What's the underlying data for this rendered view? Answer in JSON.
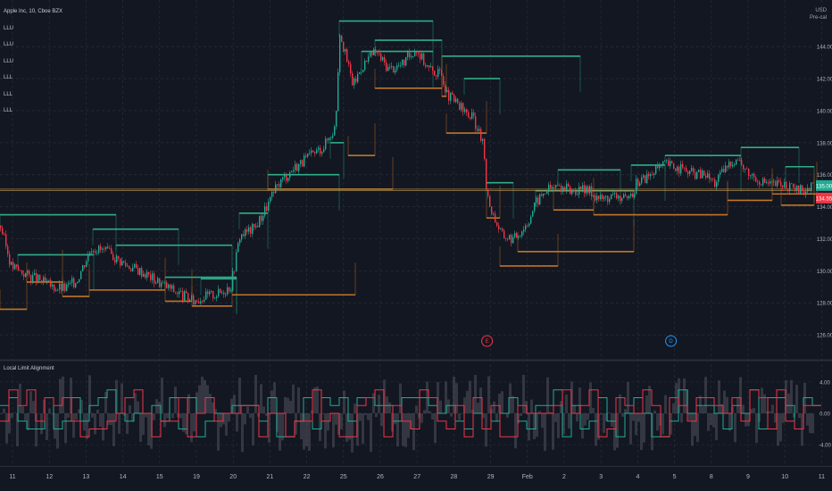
{
  "header": {
    "symbol_title": "Apple Inc, 10, Cboe BZX",
    "legend_lines": [
      "LLU",
      "LLU",
      "LLU",
      "LLL",
      "LLL",
      "LLL"
    ],
    "currency": "USD",
    "currency_sub": "Pre-cal"
  },
  "indicator": {
    "title": "Local Limit Alignment"
  },
  "chart_data": [
    {
      "type": "candlestick",
      "title": "Apple Inc, 10, Cboe BZX",
      "x_ticks": [
        "11",
        "12",
        "13",
        "14",
        "15",
        "19",
        "20",
        "21",
        "22",
        "25",
        "26",
        "27",
        "28",
        "29",
        "Feb",
        "2",
        "3",
        "4",
        "5",
        "8",
        "9",
        "10",
        "11"
      ],
      "y_ticks": [
        126,
        128,
        130,
        132,
        134,
        136,
        138,
        140,
        142,
        144
      ],
      "y_tick_labels": [
        "126.00",
        "128.00",
        "130.00",
        "132.00",
        "134.00",
        "136.00",
        "138.00",
        "140.00",
        "142.00",
        "144.00"
      ],
      "ylim": [
        124.5,
        146.8
      ],
      "last_price_label": "135.00",
      "last_price_color": "#22ab94",
      "sub_price_label": "134.55",
      "sub_price_color": "#f23645",
      "close_path": [
        [
          0,
          132.8
        ],
        [
          12,
          130.3
        ],
        [
          28,
          129.8
        ],
        [
          40,
          129.5
        ],
        [
          58,
          129.0
        ],
        [
          72,
          128.9
        ],
        [
          85,
          129.4
        ],
        [
          102,
          131.5
        ],
        [
          118,
          131.2
        ],
        [
          140,
          130.4
        ],
        [
          160,
          129.9
        ],
        [
          180,
          129.2
        ],
        [
          200,
          128.6
        ],
        [
          215,
          128.1
        ],
        [
          228,
          128.4
        ],
        [
          245,
          128.6
        ],
        [
          258,
          129.1
        ],
        [
          268,
          132.2
        ],
        [
          285,
          132.7
        ],
        [
          300,
          134.2
        ],
        [
          312,
          135.5
        ],
        [
          330,
          136.5
        ],
        [
          348,
          137.2
        ],
        [
          362,
          137.8
        ],
        [
          375,
          139.0
        ],
        [
          380,
          145.0
        ],
        [
          386,
          143.5
        ],
        [
          395,
          141.6
        ],
        [
          405,
          142.8
        ],
        [
          420,
          143.7
        ],
        [
          435,
          142.6
        ],
        [
          450,
          142.9
        ],
        [
          465,
          143.9
        ],
        [
          480,
          142.6
        ],
        [
          495,
          142.2
        ],
        [
          500,
          141.0
        ],
        [
          508,
          140.6
        ],
        [
          520,
          139.9
        ],
        [
          530,
          139.5
        ],
        [
          540,
          138.0
        ],
        [
          545,
          134.6
        ],
        [
          552,
          133.5
        ],
        [
          562,
          132.2
        ],
        [
          575,
          132.0
        ],
        [
          590,
          133.0
        ],
        [
          600,
          134.3
        ],
        [
          612,
          135.1
        ],
        [
          625,
          135.3
        ],
        [
          640,
          135.0
        ],
        [
          660,
          135.0
        ],
        [
          672,
          134.5
        ],
        [
          690,
          134.7
        ],
        [
          705,
          134.3
        ],
        [
          712,
          135.5
        ],
        [
          725,
          135.9
        ],
        [
          745,
          136.7
        ],
        [
          760,
          136.4
        ],
        [
          775,
          136.1
        ],
        [
          790,
          136.0
        ],
        [
          800,
          135.5
        ],
        [
          815,
          136.6
        ],
        [
          825,
          137.1
        ],
        [
          835,
          136.2
        ],
        [
          850,
          135.7
        ],
        [
          862,
          135.4
        ],
        [
          878,
          135.4
        ],
        [
          890,
          135.0
        ],
        [
          905,
          135.1
        ],
        [
          910,
          135.3
        ]
      ],
      "upper_limit_segments": [
        [
          0,
          133.5,
          130
        ],
        [
          20,
          131.0,
          105
        ],
        [
          104,
          132.6,
          200
        ],
        [
          130,
          131.6,
          260
        ],
        [
          185,
          129.6,
          265
        ],
        [
          225,
          129.5,
          265
        ],
        [
          268,
          133.6,
          300
        ],
        [
          300,
          136.0,
          380
        ],
        [
          370,
          138.0,
          385
        ],
        [
          380,
          145.6,
          485
        ],
        [
          405,
          143.7,
          485
        ],
        [
          420,
          144.4,
          495
        ],
        [
          495,
          143.4,
          650
        ],
        [
          520,
          142.0,
          560
        ],
        [
          545,
          135.5,
          575
        ],
        [
          600,
          135.0,
          710
        ],
        [
          625,
          136.3,
          695
        ],
        [
          707,
          136.6,
          745
        ],
        [
          745,
          137.2,
          830
        ],
        [
          830,
          137.7,
          895
        ],
        [
          880,
          136.5,
          912
        ]
      ],
      "lower_limit_segments": [
        [
          0,
          127.6,
          30
        ],
        [
          30,
          129.3,
          70
        ],
        [
          70,
          128.4,
          100
        ],
        [
          100,
          128.8,
          185
        ],
        [
          185,
          128.1,
          215
        ],
        [
          215,
          127.8,
          260
        ],
        [
          260,
          128.5,
          398
        ],
        [
          300,
          135.1,
          440
        ],
        [
          390,
          137.2,
          420
        ],
        [
          420,
          141.4,
          495
        ],
        [
          495,
          140.9,
          500
        ],
        [
          500,
          138.6,
          545
        ],
        [
          545,
          133.3,
          560
        ],
        [
          560,
          130.3,
          625
        ],
        [
          580,
          131.2,
          710
        ],
        [
          620,
          133.8,
          665
        ],
        [
          665,
          133.5,
          815
        ],
        [
          815,
          134.4,
          865
        ],
        [
          865,
          134.8,
          915
        ],
        [
          875,
          134.1,
          912
        ]
      ],
      "horizontal_levels": [
        135.1,
        135.0
      ],
      "event_markers": [
        {
          "label": "E",
          "x_index": 13,
          "color": "#f23645"
        },
        {
          "label": "D",
          "x_index": 18,
          "color": "#2196f3"
        }
      ]
    },
    {
      "type": "step",
      "title": "Local Limit Alignment",
      "y_ticks": [
        4,
        0,
        -4
      ],
      "y_tick_labels": [
        "4.00",
        "0.00",
        "-4.00"
      ],
      "ylim": [
        -6.5,
        6.5
      ],
      "seed": 7
    }
  ],
  "colors": {
    "background": "#131722",
    "grid": "#2a2e39",
    "up": "#22ab94",
    "down": "#f23645",
    "upper_limit": "#1e8a6a",
    "lower_limit": "#a8601c",
    "level_line": "#c8a050"
  }
}
